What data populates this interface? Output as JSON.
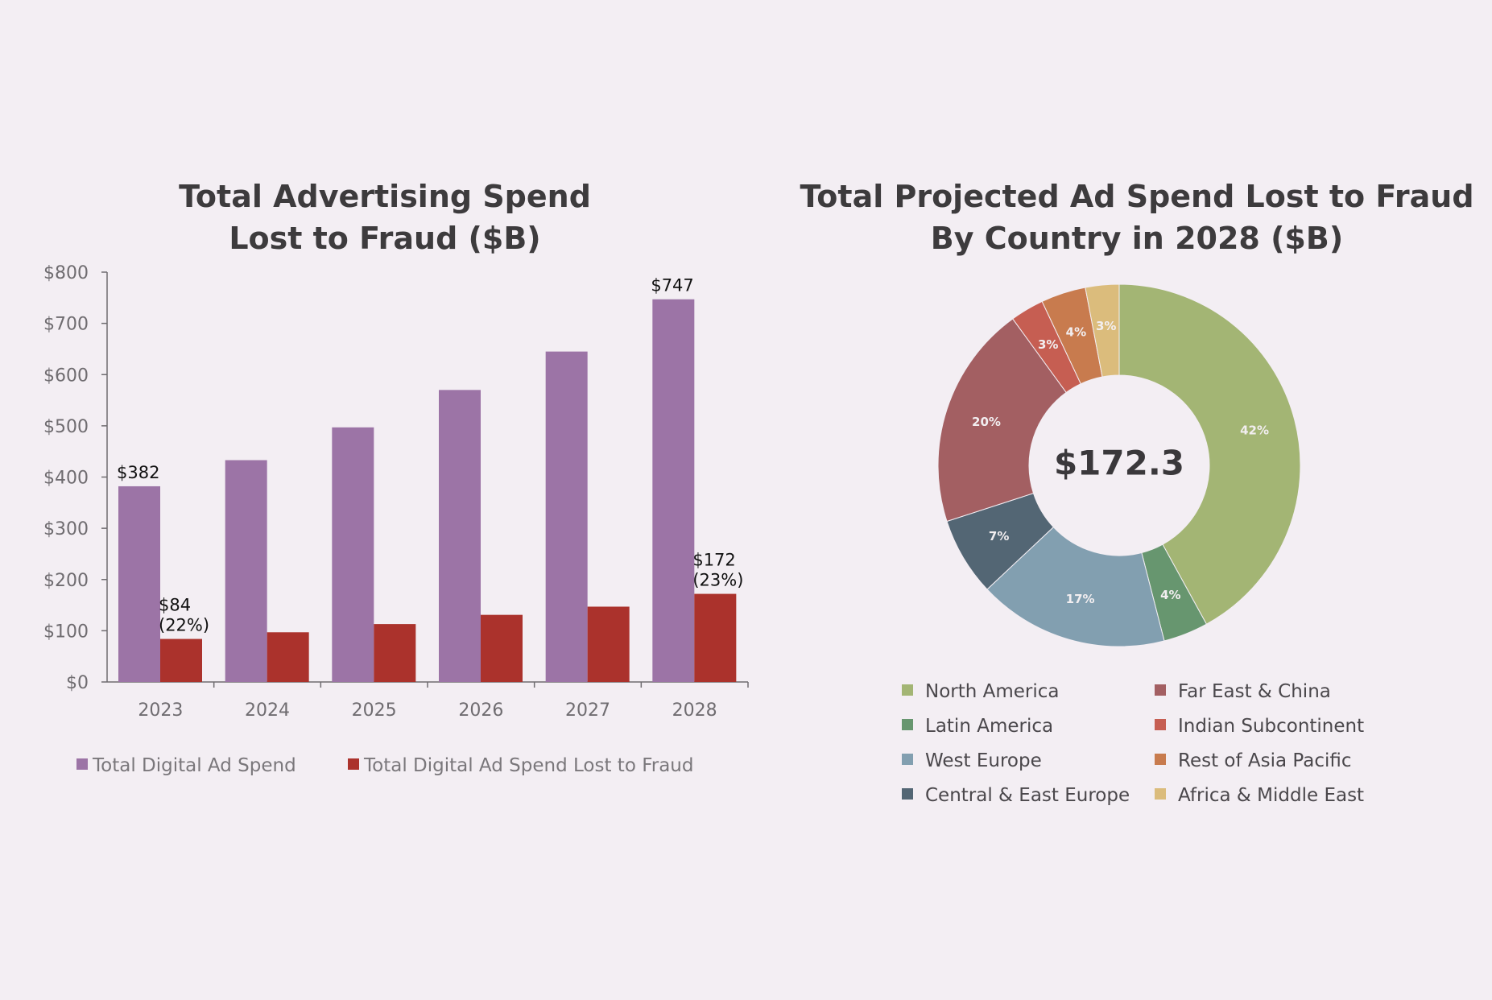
{
  "chart_data": [
    {
      "type": "bar",
      "title_lines": [
        "Total Advertising Spend",
        "Lost to Fraud ($B)"
      ],
      "categories": [
        "2023",
        "2024",
        "2025",
        "2026",
        "2027",
        "2028"
      ],
      "series": [
        {
          "name": "Total Digital Ad Spend",
          "color": "#9c74a6",
          "values": [
            382,
            433,
            497,
            570,
            645,
            747
          ]
        },
        {
          "name": "Total Digital Ad Spend Lost to Fraud",
          "color": "#ab322c",
          "values": [
            84,
            97,
            113,
            131,
            147,
            172
          ]
        }
      ],
      "y_ticks": [
        "$0",
        "$100",
        "$200",
        "$300",
        "$400",
        "$500",
        "$600",
        "$700",
        "$800"
      ],
      "ylim": [
        0,
        800
      ],
      "data_labels": [
        {
          "series": 0,
          "index": 0,
          "lines": [
            "$382"
          ]
        },
        {
          "series": 1,
          "index": 0,
          "lines": [
            "$84",
            "(22%)"
          ]
        },
        {
          "series": 0,
          "index": 5,
          "lines": [
            "$747"
          ]
        },
        {
          "series": 1,
          "index": 5,
          "lines": [
            "$172",
            "(23%)"
          ]
        }
      ],
      "legend_position": "bottom"
    },
    {
      "type": "pie",
      "donut": true,
      "title_lines": [
        "Total Projected Ad Spend Lost to Fraud",
        "By Country in 2028 ($B)"
      ],
      "center_label": "$172.3",
      "slices": [
        {
          "label": "North America",
          "percent": 42,
          "pct_label": "42%",
          "color": "#a3b574"
        },
        {
          "label": "Latin America",
          "percent": 4,
          "pct_label": "4%",
          "color": "#67966f"
        },
        {
          "label": "West Europe",
          "percent": 17,
          "pct_label": "17%",
          "color": "#829fb0"
        },
        {
          "label": "Central & East Europe",
          "percent": 7,
          "pct_label": "7%",
          "color": "#536674"
        },
        {
          "label": "Far East & China",
          "percent": 20,
          "pct_label": "20%",
          "color": "#a35f62"
        },
        {
          "label": "Indian Subcontinent",
          "percent": 3,
          "pct_label": "3%",
          "color": "#c65e52"
        },
        {
          "label": "Rest of Asia Pacific",
          "percent": 4,
          "pct_label": "4%",
          "color": "#c87b4e"
        },
        {
          "label": "Africa & Middle East",
          "percent": 3,
          "pct_label": "3%",
          "color": "#dbbc7c"
        }
      ],
      "legend_position": "bottom"
    }
  ]
}
